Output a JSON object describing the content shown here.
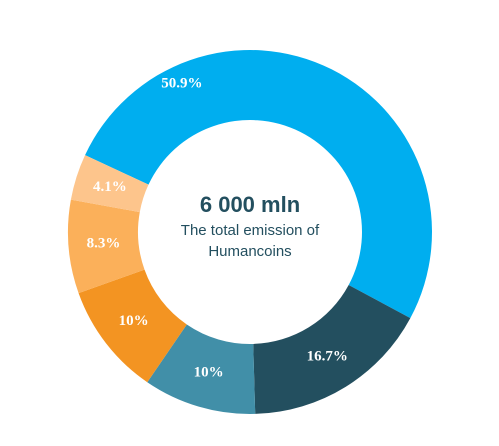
{
  "chart_data": {
    "type": "donut",
    "center_title": "6 000 mln",
    "center_lines": [
      "The total emission of",
      "Humancoins"
    ],
    "categories": [
      null,
      null,
      null,
      null,
      null,
      null
    ],
    "values": [
      50.9,
      16.7,
      10,
      10,
      8.3,
      4.1
    ],
    "value_labels": [
      "50.9%",
      "16.7%",
      "10%",
      "10%",
      "8.3%",
      "4.1%"
    ],
    "colors": [
      "#00aeef",
      "#234f5f",
      "#418fa8",
      "#f39422",
      "#fbb05a",
      "#fdc58c"
    ]
  }
}
